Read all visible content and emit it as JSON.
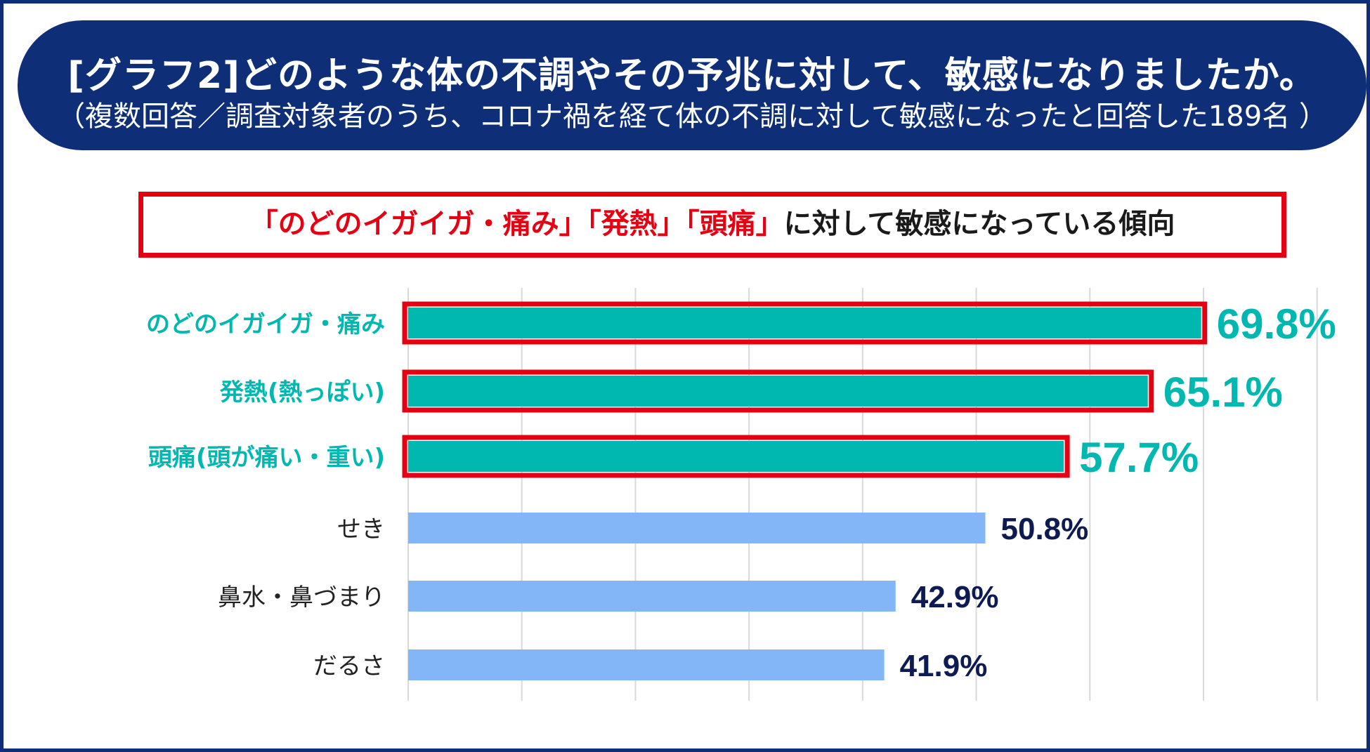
{
  "header": {
    "title": "[グラフ2]どのような体の不調やその予兆に対して、敏感になりましたか。",
    "subtitle": "（複数回答／調査対象者のうち、コロナ禍を経て体の不調に対して敏感になったと回答した189名 ）"
  },
  "callout": {
    "highlight": "「のどのイガイガ・痛み」「発熱」「頭痛」",
    "rest": "に対して敏感になっている傾向"
  },
  "colors": {
    "navy": "#0e2f78",
    "teal": "#00b8b0",
    "light_blue": "#82b6f6",
    "red": "#e50012",
    "value_dark": "#0d1b52",
    "label_dark": "#222222",
    "grid": "#d9d9d9"
  },
  "chart_data": {
    "type": "bar",
    "orientation": "horizontal",
    "categories": [
      "のどのイガイガ・痛み",
      "発熱(熱っぽい)",
      "頭痛(頭が痛い・重い)",
      "せき",
      "鼻水・鼻づまり",
      "だるさ"
    ],
    "values": [
      69.8,
      65.1,
      57.7,
      50.8,
      42.9,
      41.9
    ],
    "value_labels": [
      "69.8%",
      "65.1%",
      "57.7%",
      "50.8%",
      "42.9%",
      "41.9%"
    ],
    "highlighted": [
      true,
      true,
      true,
      false,
      false,
      false
    ],
    "xlim": [
      0,
      80
    ],
    "grid": true,
    "title": "",
    "xlabel": "",
    "ylabel": ""
  }
}
